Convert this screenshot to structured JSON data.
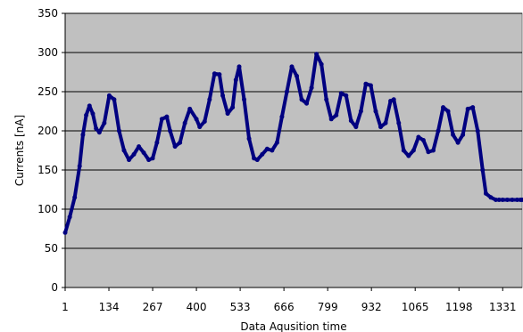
{
  "chart_data": {
    "type": "line",
    "title": "",
    "xlabel": "Data Aqusition time",
    "ylabel": "Currents [nA]",
    "xlim": [
      1,
      1390
    ],
    "ylim": [
      0,
      350
    ],
    "y_ticks": [
      0,
      50,
      100,
      150,
      200,
      250,
      300,
      350
    ],
    "x_ticks": [
      1,
      134,
      267,
      400,
      533,
      666,
      799,
      932,
      1065,
      1198,
      1331
    ],
    "grid": "horizontal",
    "legend": "none",
    "colors": {
      "plot_background": "#c0c0c0",
      "series": "#000080",
      "gridline": "#000000"
    },
    "series": [
      {
        "x": [
          1,
          15,
          30,
          45,
          55,
          65,
          75,
          85,
          95,
          105,
          120,
          135,
          150,
          165,
          180,
          195,
          210,
          225,
          240,
          255,
          267,
          280,
          295,
          310,
          320,
          335,
          350,
          365,
          380,
          400,
          410,
          425,
          440,
          455,
          470,
          480,
          495,
          510,
          520,
          530,
          545,
          560,
          575,
          585,
          600,
          615,
          630,
          645,
          660,
          675,
          690,
          705,
          720,
          735,
          750,
          765,
          780,
          795,
          810,
          825,
          840,
          855,
          870,
          885,
          900,
          915,
          930,
          945,
          960,
          975,
          990,
          1000,
          1015,
          1030,
          1045,
          1060,
          1075,
          1090,
          1105,
          1120,
          1135,
          1150,
          1165,
          1180,
          1195,
          1210,
          1225,
          1240,
          1255,
          1270,
          1280,
          1295,
          1310,
          1320,
          1331,
          1345,
          1360,
          1375,
          1385,
          1390
        ],
        "y": [
          70,
          90,
          115,
          155,
          195,
          220,
          232,
          222,
          203,
          198,
          210,
          245,
          240,
          200,
          175,
          163,
          170,
          180,
          172,
          163,
          165,
          185,
          215,
          218,
          200,
          180,
          185,
          210,
          228,
          215,
          205,
          212,
          240,
          273,
          272,
          245,
          222,
          230,
          265,
          282,
          240,
          190,
          165,
          163,
          170,
          177,
          175,
          185,
          218,
          250,
          282,
          270,
          240,
          235,
          255,
          298,
          285,
          240,
          215,
          220,
          248,
          245,
          213,
          205,
          225,
          260,
          258,
          225,
          205,
          210,
          238,
          240,
          210,
          175,
          168,
          175,
          192,
          188,
          173,
          175,
          200,
          230,
          225,
          195,
          185,
          195,
          228,
          230,
          200,
          150,
          120,
          115,
          112,
          112,
          112,
          112,
          112,
          112,
          112,
          112
        ]
      }
    ]
  }
}
